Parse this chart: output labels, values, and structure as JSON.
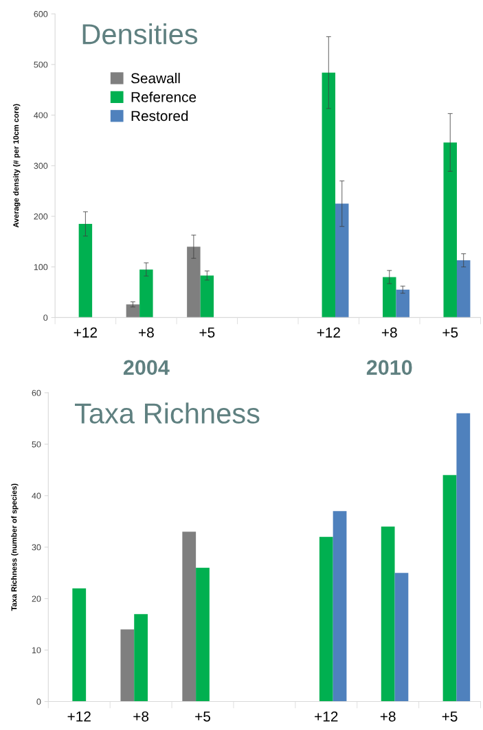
{
  "chart_data": [
    {
      "type": "bar",
      "title": "Densities",
      "ylabel": "Average density (# per 10cm core)",
      "categories": [
        "+12",
        "+8",
        "+5",
        null,
        "+12",
        "+8",
        "+5"
      ],
      "ylim": [
        0,
        600
      ],
      "yticks": [
        0,
        100,
        200,
        300,
        400,
        500,
        600
      ],
      "grid": false,
      "legend": "top left",
      "annotations": [
        "2004",
        "2010"
      ],
      "series": [
        {
          "name": "Seawall",
          "color": "#7f7f7f",
          "values": [
            null,
            26,
            140,
            null,
            null,
            null,
            null
          ],
          "errors": [
            null,
            5,
            23,
            null,
            null,
            null,
            null
          ]
        },
        {
          "name": "Reference",
          "color": "#00b050",
          "values": [
            185,
            95,
            83,
            null,
            484,
            80,
            346
          ],
          "errors": [
            24,
            13,
            9,
            null,
            71,
            13,
            57
          ]
        },
        {
          "name": "Restored",
          "color": "#4f81bd",
          "values": [
            null,
            null,
            null,
            null,
            225,
            55,
            113
          ],
          "errors": [
            null,
            null,
            null,
            null,
            45,
            7,
            13
          ]
        }
      ]
    },
    {
      "type": "bar",
      "title": "Taxa Richness",
      "ylabel": "Taxa Richness (number of species)",
      "categories": [
        "+12",
        "+8",
        "+5",
        null,
        "+12",
        "+8",
        "+5"
      ],
      "ylim": [
        0,
        60
      ],
      "yticks": [
        0,
        10,
        20,
        30,
        40,
        50,
        60
      ],
      "grid": false,
      "legend": false,
      "series": [
        {
          "color": "#7f7f7f",
          "values": [
            null,
            14,
            33,
            null,
            null,
            null,
            null
          ]
        },
        {
          "color": "#00b050",
          "values": [
            22,
            17,
            26,
            null,
            32,
            34,
            44
          ]
        },
        {
          "color": "#4f81bd",
          "values": [
            null,
            null,
            null,
            null,
            37,
            25,
            56
          ]
        }
      ]
    }
  ]
}
